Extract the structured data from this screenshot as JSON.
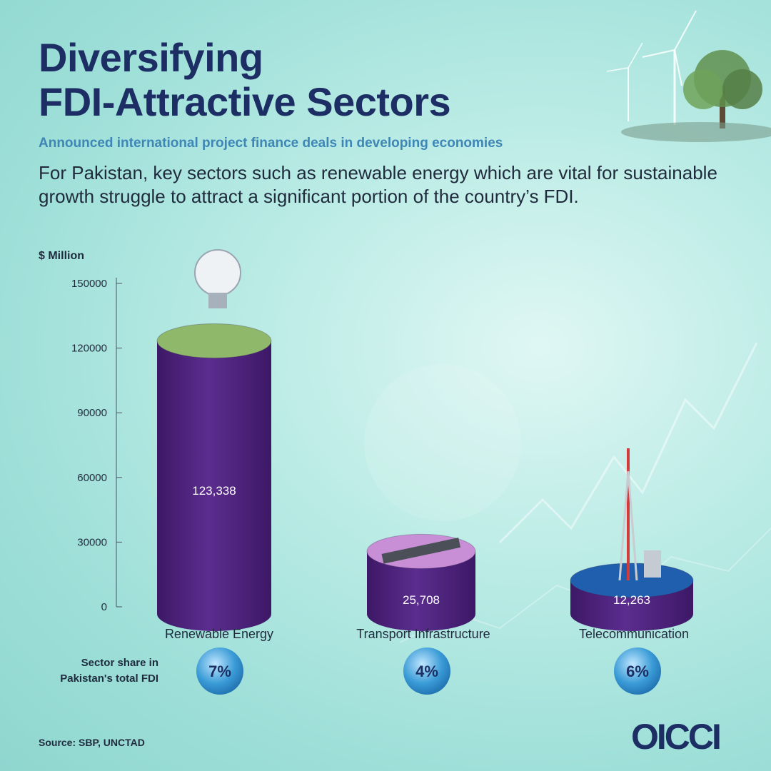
{
  "header": {
    "title_line1": "Diversifying",
    "title_line2": "FDI-Attractive Sectors",
    "subtitle": "Announced international project finance deals in developing economies",
    "intro": "For Pakistan, key sectors such as renewable energy which are vital for sustainable growth struggle to attract a significant portion of the country’s FDI."
  },
  "share_label": "Sector share in Pakistan's total FDI",
  "source": "Source: SBP, UNCTAD",
  "logo": "OICCI",
  "colors": {
    "bar": "#5b2d8e",
    "bar_dark": "#3d1866",
    "title": "#1c2e63",
    "subtitle": "#3e86b5",
    "share_bubble": "#3a9bd6",
    "telecom_top": "#1f5fae"
  },
  "chart_data": {
    "type": "bar",
    "ylabel": "$ Million",
    "ylim": [
      0,
      150000
    ],
    "yticks": [
      0,
      30000,
      60000,
      90000,
      120000,
      150000
    ],
    "categories": [
      "Renewable Energy",
      "Transport Infrastructure",
      "Telecommunication"
    ],
    "values": [
      123338,
      25708,
      12263
    ],
    "value_labels": [
      "123,338",
      "25,708",
      "12,263"
    ],
    "shares": [
      "7%",
      "4%",
      "6%"
    ],
    "grid": false
  }
}
